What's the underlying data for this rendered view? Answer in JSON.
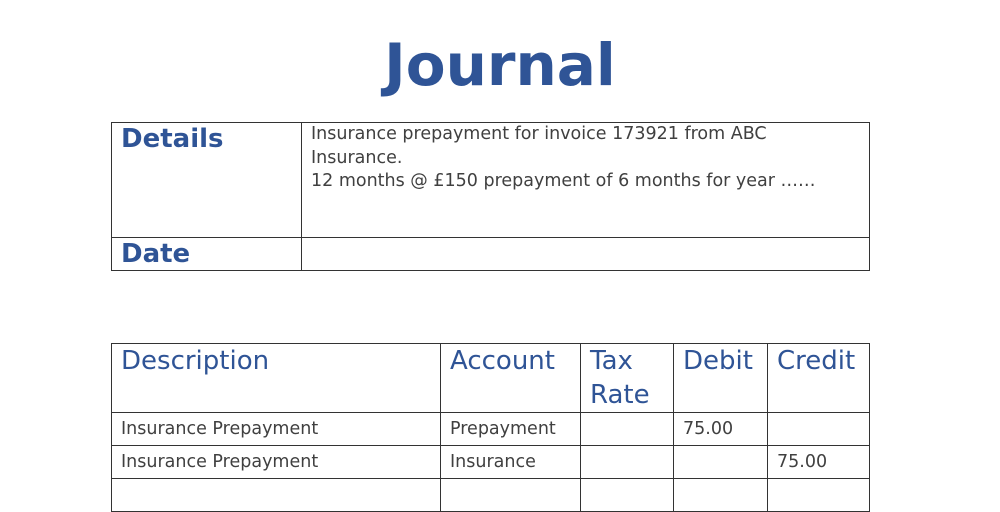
{
  "title": "Journal",
  "details": {
    "details_label": "Details",
    "details_lines": [
      "Insurance prepayment for invoice 173921 from ABC",
      "Insurance.",
      "12 months @ £150 prepayment of 6 months for year ……"
    ],
    "date_label": "Date",
    "date_value": ""
  },
  "journal_table": {
    "headers": [
      "Description",
      "Account",
      "Tax Rate",
      "Debit",
      "Credit"
    ],
    "rows": [
      [
        "Insurance Prepayment",
        "Prepayment",
        "",
        "75.00",
        ""
      ],
      [
        "Insurance Prepayment",
        "Insurance",
        "",
        "",
        "75.00"
      ],
      [
        "",
        "",
        "",
        "",
        ""
      ]
    ]
  }
}
